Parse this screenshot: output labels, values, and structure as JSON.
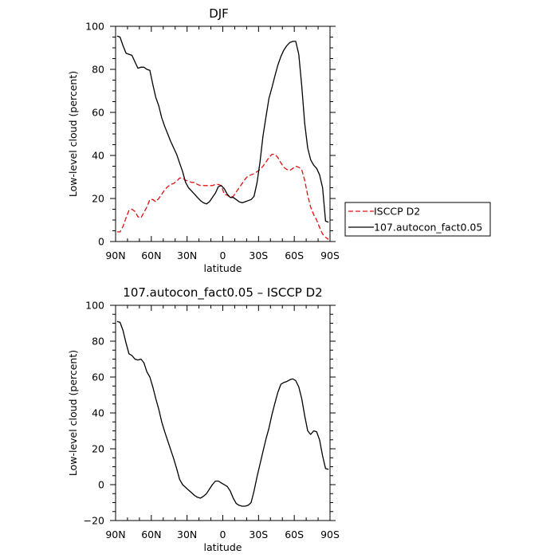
{
  "colors": {
    "model": "#000000",
    "obs": "#e01010",
    "frame": "#000000"
  },
  "chart_data": [
    {
      "type": "line",
      "title": "DJF",
      "xlabel": "latitude",
      "ylabel": "Low-level cloud (percent)",
      "xlim": [
        90,
        -90
      ],
      "ylim": [
        0,
        100
      ],
      "xticks": [
        {
          "v": 90,
          "label": "90N"
        },
        {
          "v": 60,
          "label": "60N"
        },
        {
          "v": 30,
          "label": "30N"
        },
        {
          "v": 0,
          "label": "0"
        },
        {
          "v": -30,
          "label": "30S"
        },
        {
          "v": -60,
          "label": "60S"
        },
        {
          "v": -90,
          "label": "90S"
        }
      ],
      "yticks": [
        0,
        20,
        40,
        60,
        80,
        100
      ],
      "legend": {
        "placement": "right, outside"
      },
      "series": [
        {
          "name": "ISCCP D2",
          "style": "dashed",
          "color": "#e01010",
          "x": [
            88.75,
            86.25,
            83.75,
            81.25,
            78.75,
            76.25,
            73.75,
            71.25,
            68.75,
            66.25,
            63.75,
            61.25,
            58.75,
            56.25,
            53.75,
            51.25,
            48.75,
            46.25,
            43.75,
            41.25,
            38.75,
            36.25,
            33.75,
            31.25,
            28.75,
            26.25,
            23.75,
            21.25,
            18.75,
            16.25,
            13.75,
            11.25,
            8.75,
            6.25,
            3.75,
            1.25,
            -1.25,
            -3.75,
            -6.25,
            -8.75,
            -11.25,
            -13.75,
            -16.25,
            -18.75,
            -21.25,
            -23.75,
            -26.25,
            -28.75,
            -31.25,
            -33.75,
            -36.25,
            -38.75,
            -41.25,
            -43.75,
            -46.25,
            -48.75,
            -51.25,
            -53.75,
            -56.25,
            -58.75,
            -61.25,
            -63.75,
            -66.25,
            -68.75,
            -71.25,
            -73.75,
            -76.25,
            -78.75,
            -81.25,
            -83.75,
            -86.25,
            -88.75
          ],
          "y": [
            4.5,
            4.5,
            7.0,
            11.0,
            14.5,
            15.0,
            14.0,
            11.5,
            11.0,
            13.5,
            16.0,
            19.5,
            19.5,
            18.5,
            20.0,
            22.0,
            24.0,
            25.5,
            26.5,
            27.0,
            28.0,
            29.5,
            29.5,
            28.5,
            28.0,
            27.5,
            27.5,
            26.5,
            26.0,
            26.0,
            26.0,
            26.0,
            26.0,
            26.5,
            26.5,
            26.0,
            22.0,
            21.5,
            20.5,
            21.0,
            23.0,
            25.0,
            27.0,
            29.0,
            30.5,
            31.0,
            31.5,
            32.5,
            33.5,
            35.0,
            37.0,
            39.0,
            40.5,
            40.5,
            39.0,
            36.5,
            34.5,
            33.5,
            33.0,
            34.0,
            35.0,
            34.5,
            33.5,
            28.5,
            21.5,
            16.0,
            12.5,
            10.0,
            6.5,
            3.5,
            2.0,
            1.0
          ]
        },
        {
          "name": "107.autocon_fact0.05",
          "style": "solid",
          "color": "#000000",
          "x": [
            88.75,
            86.25,
            83.75,
            81.25,
            78.75,
            76.25,
            73.75,
            71.25,
            68.75,
            66.25,
            63.75,
            61.25,
            58.75,
            56.25,
            53.75,
            51.25,
            48.75,
            46.25,
            43.75,
            41.25,
            38.75,
            36.25,
            33.75,
            31.25,
            28.75,
            26.25,
            23.75,
            21.25,
            18.75,
            16.25,
            13.75,
            11.25,
            8.75,
            6.25,
            3.75,
            1.25,
            -1.25,
            -3.75,
            -6.25,
            -8.75,
            -11.25,
            -13.75,
            -16.25,
            -18.75,
            -21.25,
            -23.75,
            -26.25,
            -28.75,
            -31.25,
            -33.75,
            -36.25,
            -38.75,
            -41.25,
            -43.75,
            -46.25,
            -48.75,
            -51.25,
            -53.75,
            -56.25,
            -58.75,
            -61.25,
            -63.75,
            -66.25,
            -68.75,
            -71.25,
            -73.75,
            -76.25,
            -78.75,
            -81.25,
            -83.75,
            -86.25,
            -88.75
          ],
          "y": [
            95.5,
            95.0,
            91.0,
            87.5,
            87.0,
            86.5,
            83.5,
            80.5,
            81.0,
            81.0,
            80.0,
            79.5,
            73.0,
            67.0,
            63.0,
            57.5,
            53.5,
            50.0,
            46.5,
            43.5,
            40.5,
            36.5,
            32.5,
            27.5,
            25.0,
            23.5,
            22.0,
            20.5,
            19.0,
            18.0,
            17.5,
            18.5,
            20.5,
            22.5,
            25.5,
            26.0,
            24.5,
            22.0,
            20.5,
            20.5,
            19.5,
            18.5,
            18.0,
            18.5,
            19.0,
            19.5,
            21.0,
            27.5,
            37.0,
            49.0,
            58.0,
            66.5,
            71.5,
            77.0,
            82.0,
            86.0,
            89.0,
            91.0,
            92.5,
            93.0,
            93.0,
            87.0,
            72.5,
            55.0,
            43.5,
            38.0,
            35.5,
            34.0,
            31.0,
            25.0,
            9.5,
            9.0
          ]
        }
      ]
    },
    {
      "type": "line",
      "title": "107.autocon_fact0.05 – ISCCP D2",
      "xlabel": "latitude",
      "ylabel": "Low-level cloud (percent)",
      "xlim": [
        90,
        -90
      ],
      "ylim": [
        -20,
        100
      ],
      "xticks": [
        {
          "v": 90,
          "label": "90N"
        },
        {
          "v": 60,
          "label": "60N"
        },
        {
          "v": 30,
          "label": "30N"
        },
        {
          "v": 0,
          "label": "0"
        },
        {
          "v": -30,
          "label": "30S"
        },
        {
          "v": -60,
          "label": "60S"
        },
        {
          "v": -90,
          "label": "90S"
        }
      ],
      "yticks": [
        -20,
        0,
        20,
        40,
        60,
        80,
        100
      ],
      "series": [
        {
          "style": "solid",
          "color": "#000000",
          "x": [
            88.75,
            86.25,
            83.75,
            81.25,
            78.75,
            76.25,
            73.75,
            71.25,
            68.75,
            66.25,
            63.75,
            61.25,
            58.75,
            56.25,
            53.75,
            51.25,
            48.75,
            46.25,
            43.75,
            41.25,
            38.75,
            36.25,
            33.75,
            31.25,
            28.75,
            26.25,
            23.75,
            21.25,
            18.75,
            16.25,
            13.75,
            11.25,
            8.75,
            6.25,
            3.75,
            1.25,
            -1.25,
            -3.75,
            -6.25,
            -8.75,
            -11.25,
            -13.75,
            -16.25,
            -18.75,
            -21.25,
            -23.75,
            -26.25,
            -28.75,
            -31.25,
            -33.75,
            -36.25,
            -38.75,
            -41.25,
            -43.75,
            -46.25,
            -48.75,
            -51.25,
            -53.75,
            -56.25,
            -58.75,
            -61.25,
            -63.75,
            -66.25,
            -68.75,
            -71.25,
            -73.75,
            -76.25,
            -78.75,
            -81.25,
            -83.75,
            -86.25,
            -88.75
          ],
          "y": [
            91.0,
            90.5,
            86.0,
            79.0,
            73.0,
            72.0,
            70.0,
            69.5,
            70.0,
            68.0,
            63.0,
            60.0,
            54.5,
            48.0,
            42.0,
            35.0,
            29.5,
            24.5,
            19.5,
            14.5,
            9.0,
            3.0,
            0.0,
            -1.5,
            -3.0,
            -4.5,
            -6.0,
            -7.0,
            -7.5,
            -6.5,
            -5.0,
            -2.5,
            0.0,
            2.0,
            2.0,
            1.0,
            0.0,
            -1.0,
            -3.5,
            -7.5,
            -10.5,
            -11.5,
            -12.0,
            -12.0,
            -11.5,
            -10.0,
            -3.5,
            4.5,
            11.5,
            18.5,
            25.5,
            31.5,
            39.0,
            45.5,
            51.5,
            56.0,
            57.0,
            57.5,
            58.5,
            59.0,
            58.0,
            54.5,
            48.0,
            38.5,
            30.0,
            28.0,
            30.0,
            29.5,
            25.0,
            16.0,
            9.0,
            8.5
          ]
        }
      ]
    }
  ]
}
